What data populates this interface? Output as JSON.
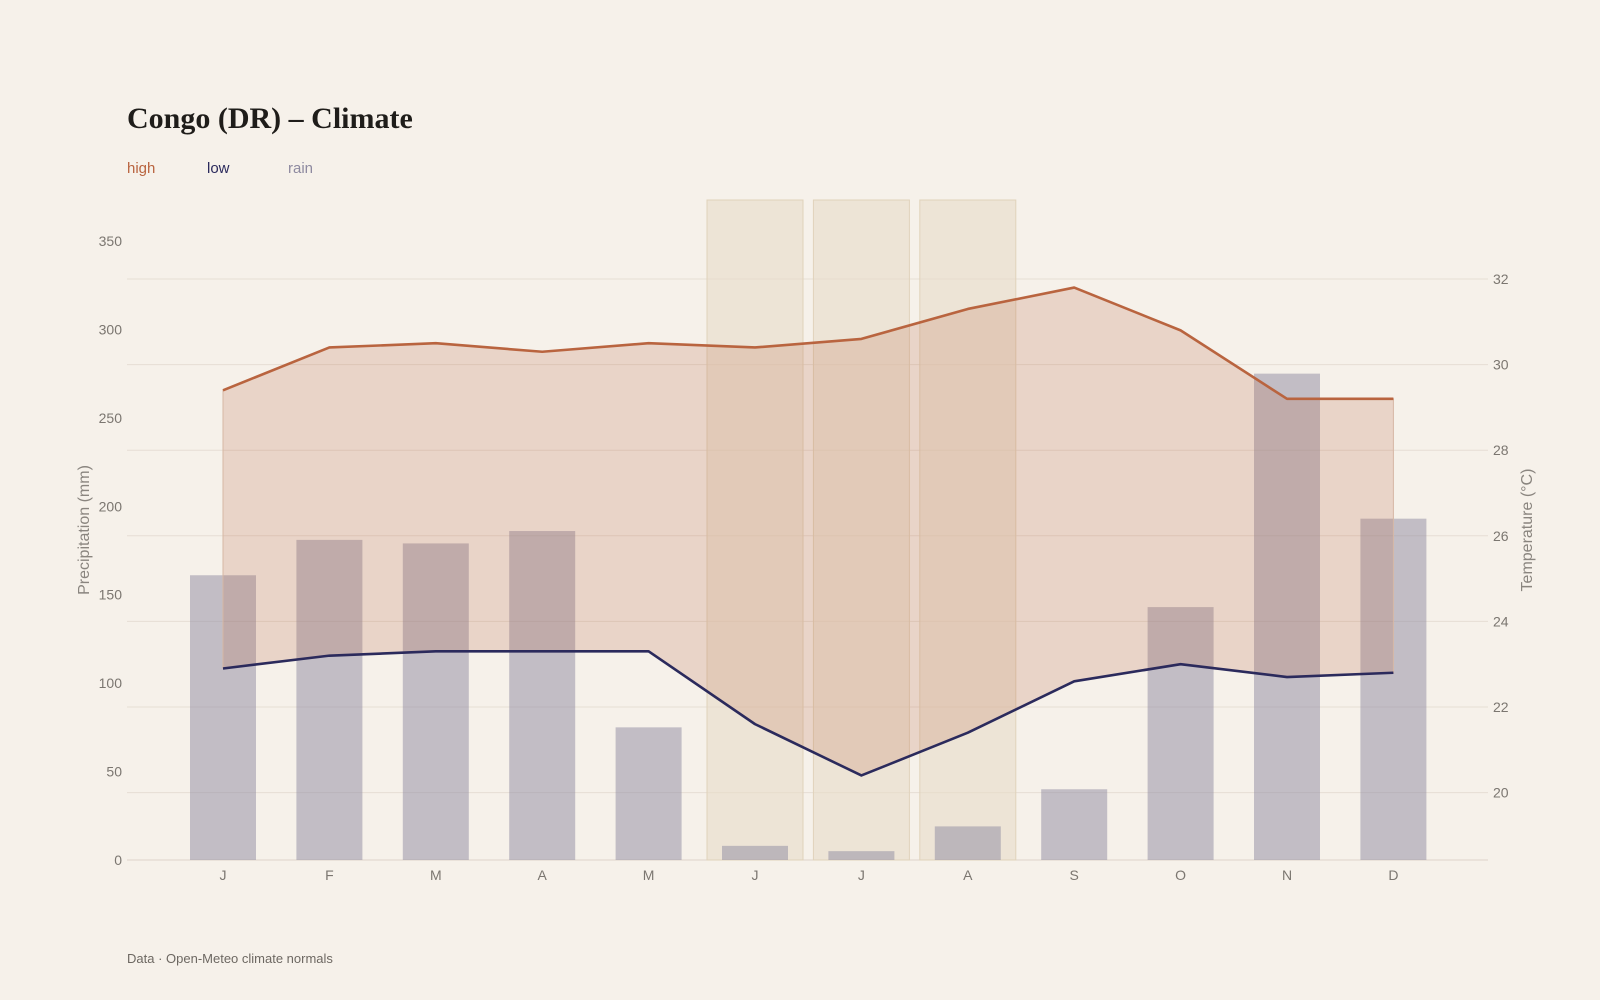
{
  "title": "Congo (DR) – Climate",
  "legend": {
    "high": "high",
    "low": "low",
    "rain": "rain"
  },
  "footer": "Data · Open-Meteo climate normals",
  "colors": {
    "background": "#f6f1ea",
    "high": "#b9643f",
    "low": "#2b2a5c",
    "rain": "#8e8aa0",
    "band": "#b9643f",
    "dry_highlight": "#e8dcc8",
    "grid": "#e6ded4"
  },
  "chart_data": {
    "type": "bar",
    "categories": [
      "J",
      "F",
      "M",
      "A",
      "M",
      "J",
      "J",
      "A",
      "S",
      "O",
      "N",
      "D"
    ],
    "series": [
      {
        "name": "rain",
        "type": "bar",
        "axis": "left",
        "values": [
          161,
          181,
          179,
          186,
          75,
          8,
          5,
          19,
          40,
          143,
          275,
          193
        ]
      },
      {
        "name": "high",
        "type": "line",
        "axis": "right",
        "values": [
          29.4,
          30.4,
          30.5,
          30.3,
          30.5,
          30.4,
          30.6,
          31.3,
          31.8,
          30.8,
          29.2,
          29.2
        ]
      },
      {
        "name": "low",
        "type": "line",
        "axis": "right",
        "values": [
          22.9,
          23.2,
          23.3,
          23.3,
          23.3,
          21.6,
          20.4,
          21.4,
          22.6,
          23.0,
          22.7,
          22.8
        ]
      }
    ],
    "band_between": [
      "low",
      "high"
    ],
    "highlighted_months": [
      5,
      6,
      7
    ],
    "ylabel_left": "Precipitation (mm)",
    "ylabel_right": "Temperature (°C)",
    "ylim_left": [
      0,
      350
    ],
    "yticks_left": [
      0,
      50,
      100,
      150,
      200,
      250,
      300,
      350
    ],
    "yticks_right": [
      20,
      22,
      24,
      26,
      28,
      30,
      32
    ],
    "grid": true,
    "legend_position": "top-left"
  }
}
